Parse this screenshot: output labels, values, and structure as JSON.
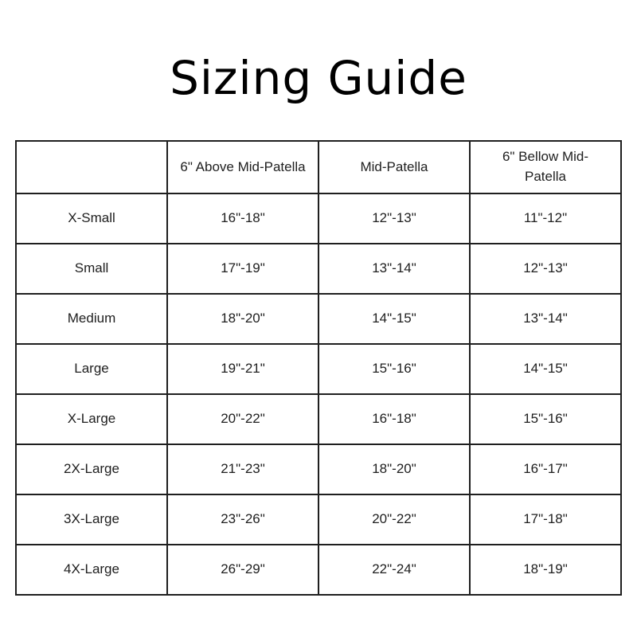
{
  "page": {
    "title": "Sizing Guide",
    "background_color": "#ffffff",
    "text_color": "#1a1a1a",
    "border_color": "#1f1f1f"
  },
  "table": {
    "columns": [
      "",
      "6\" Above Mid-Patella",
      "Mid-Patella",
      "6\" Bellow Mid-Patella"
    ],
    "rows": [
      {
        "size": "X-Small",
        "values": [
          "16\"-18\"",
          "12\"-13\"",
          "11\"-12\""
        ]
      },
      {
        "size": "Small",
        "values": [
          "17\"-19\"",
          "13\"-14\"",
          "12\"-13\""
        ]
      },
      {
        "size": "Medium",
        "values": [
          "18\"-20\"",
          "14\"-15\"",
          "13\"-14\""
        ]
      },
      {
        "size": "Large",
        "values": [
          "19\"-21\"",
          "15\"-16\"",
          "14\"-15\""
        ]
      },
      {
        "size": "X-Large",
        "values": [
          "20\"-22\"",
          "16\"-18\"",
          "15\"-16\""
        ]
      },
      {
        "size": "2X-Large",
        "values": [
          "21\"-23\"",
          "18\"-20\"",
          "16\"-17\""
        ]
      },
      {
        "size": "3X-Large",
        "values": [
          "23\"-26\"",
          "20\"-22\"",
          "17\"-18\""
        ]
      },
      {
        "size": "4X-Large",
        "values": [
          "26\"-29\"",
          "22\"-24\"",
          "18\"-19\""
        ]
      }
    ]
  }
}
